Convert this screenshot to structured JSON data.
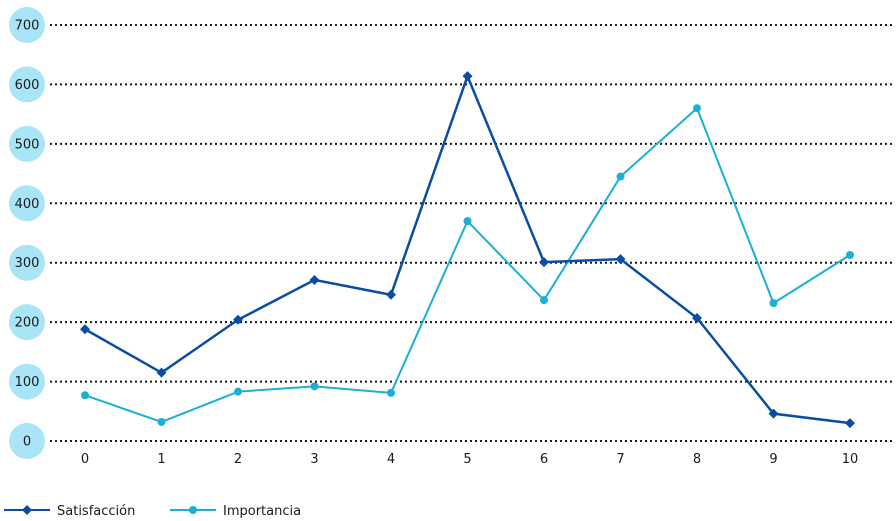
{
  "chart_data": {
    "type": "line",
    "x": [
      0,
      1,
      2,
      3,
      4,
      5,
      6,
      7,
      8,
      9,
      10
    ],
    "ylim": [
      0,
      700
    ],
    "yticks": [
      0,
      100,
      200,
      300,
      400,
      500,
      600,
      700
    ],
    "grid": true,
    "legend_position": "bottom-left",
    "series": [
      {
        "name": "Satisfacción",
        "color": "#0a4da2",
        "marker": "diamond",
        "values": [
          188,
          115,
          204,
          271,
          246,
          614,
          301,
          306,
          207,
          46,
          30
        ]
      },
      {
        "name": "Importancia",
        "color": "#1ab0d4",
        "marker": "circle",
        "values": [
          77,
          32,
          83,
          92,
          81,
          370,
          237,
          445,
          560,
          232,
          313
        ]
      }
    ]
  }
}
